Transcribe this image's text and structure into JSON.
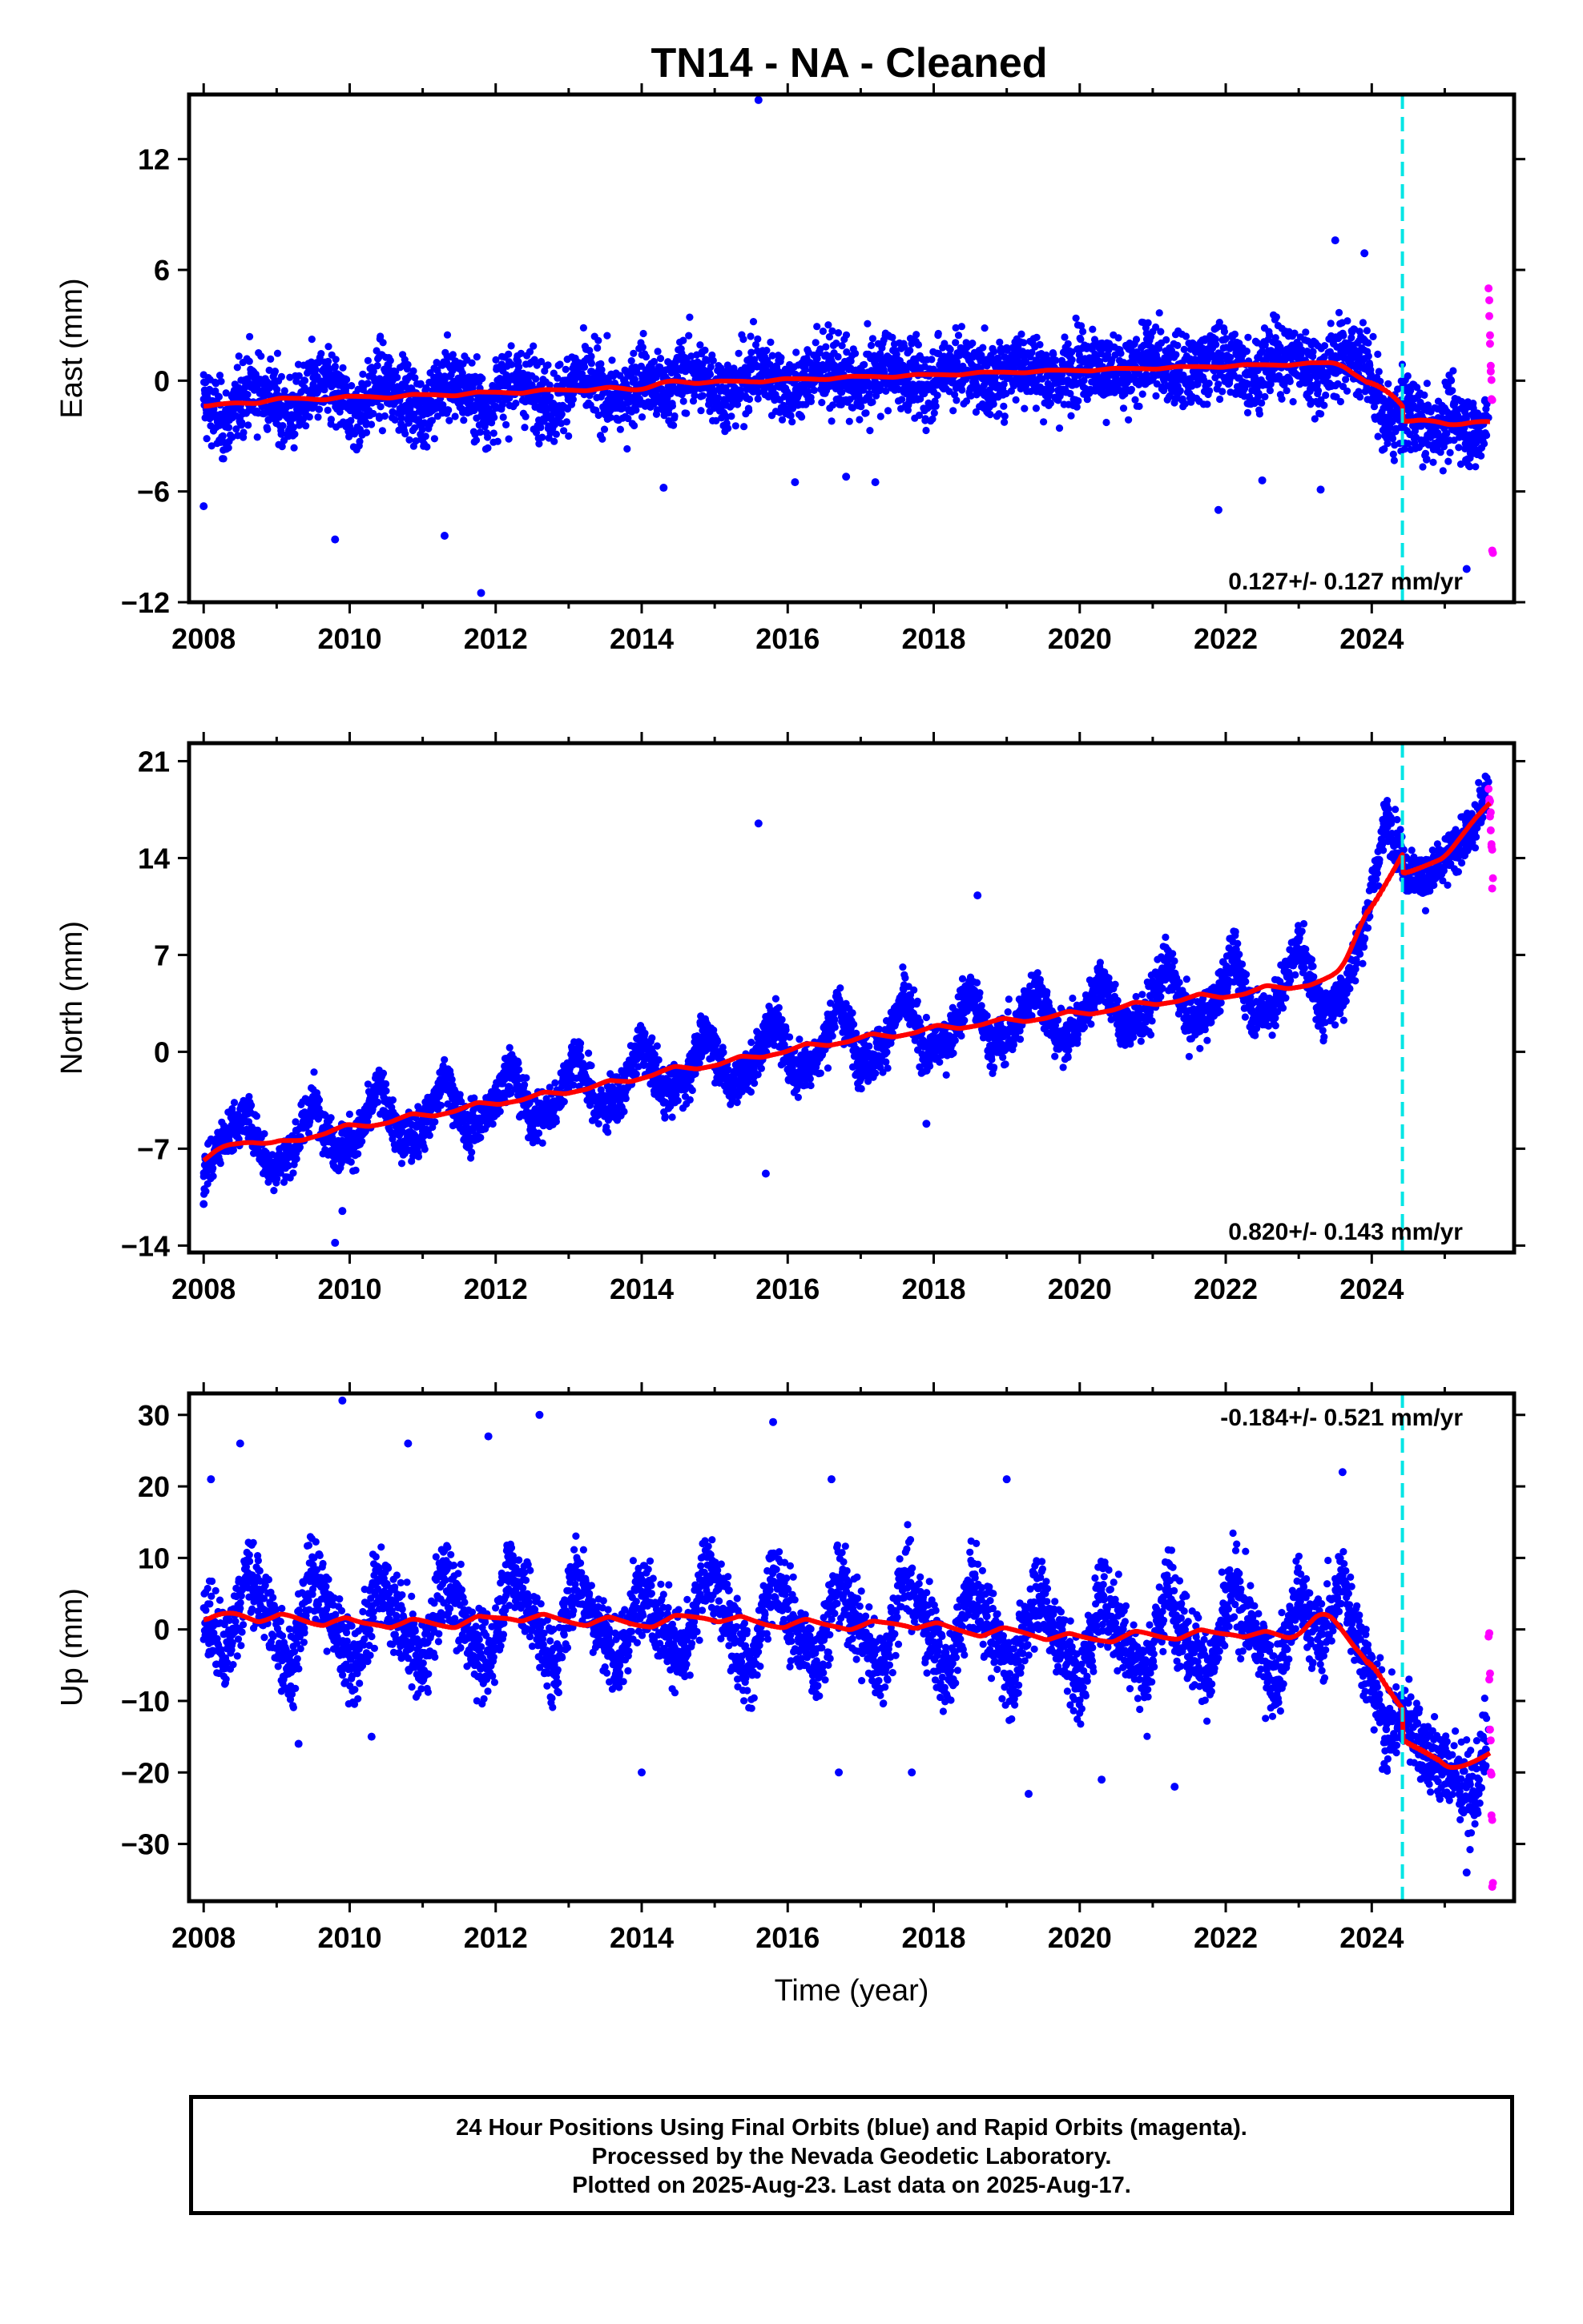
{
  "title": "TN14  - NA - Cleaned",
  "footer": {
    "line1": "24 Hour Positions Using Final Orbits (blue) and Rapid Orbits (magenta).",
    "line2": "Processed by the Nevada Geodetic Laboratory.",
    "line3": "Plotted on 2025-Aug-23. Last data on 2025-Aug-17."
  },
  "colors": {
    "final": "#0000ff",
    "rapid": "#ff00ff",
    "model": "#ff0000",
    "offset_marker": "#00e5e5"
  },
  "chart_data": [
    {
      "type": "scatter",
      "component": "east",
      "ylabel": "East (mm)",
      "xlabel": "",
      "xlim": [
        2007.8,
        2025.95
      ],
      "ylim": [
        -12,
        15.5
      ],
      "xticks": [
        2008,
        2010,
        2012,
        2014,
        2016,
        2018,
        2020,
        2022,
        2024
      ],
      "yticks": [
        -12,
        -6,
        0,
        6,
        12
      ],
      "offset_epoch": 2024.42,
      "rate_text": "0.127+/- 0.127 mm/yr",
      "rate_position": "bottom-right",
      "series": [
        {
          "kind": "final",
          "x": [
            2008.0,
            2008.3,
            2008.6,
            2008.9,
            2009.2,
            2009.5,
            2009.8,
            2010.1,
            2010.4,
            2010.7,
            2011.0,
            2011.3,
            2011.6,
            2011.9,
            2012.2,
            2012.5,
            2012.8,
            2013.1,
            2013.4,
            2013.7,
            2014.0,
            2014.3,
            2014.6,
            2014.9,
            2015.2,
            2015.5,
            2015.8,
            2016.1,
            2016.4,
            2016.7,
            2017.0,
            2017.3,
            2017.6,
            2017.9,
            2018.2,
            2018.5,
            2018.8,
            2019.1,
            2019.4,
            2019.7,
            2020.0,
            2020.3,
            2020.6,
            2020.9,
            2021.2,
            2021.5,
            2021.8,
            2022.1,
            2022.4,
            2022.7,
            2023.0,
            2023.3,
            2023.6,
            2023.9,
            2024.2,
            2024.5,
            2024.8,
            2025.1,
            2025.4,
            2025.6
          ],
          "y": [
            -1.0,
            -2.5,
            -0.3,
            -0.8,
            -2.0,
            -0.2,
            -0.7,
            -1.9,
            -0.1,
            -0.6,
            -1.8,
            0.0,
            -0.5,
            -1.6,
            0.1,
            -0.4,
            -1.4,
            0.2,
            -0.3,
            -1.2,
            0.3,
            -0.8,
            0.5,
            0.1,
            -0.9,
            0.6,
            0.2,
            -0.7,
            0.7,
            0.3,
            -0.5,
            0.8,
            0.4,
            -0.4,
            0.9,
            0.5,
            -0.2,
            1.0,
            0.6,
            -0.1,
            1.1,
            0.7,
            0.0,
            1.2,
            0.8,
            0.1,
            1.3,
            0.9,
            0.2,
            1.4,
            1.0,
            0.3,
            1.5,
            1.2,
            -2.5,
            -1.5,
            -2.8,
            -1.8,
            -3.0,
            -2.0
          ]
        },
        {
          "kind": "outliers",
          "x": [
            2008.0,
            2009.8,
            2011.3,
            2011.8,
            2014.3,
            2015.6,
            2016.1,
            2016.8,
            2017.2,
            2021.9,
            2022.5,
            2023.3,
            2023.5,
            2023.9,
            2025.3
          ],
          "y": [
            -6.8,
            -8.6,
            -8.4,
            -11.5,
            -5.8,
            15.2,
            -5.5,
            -5.2,
            -5.5,
            -7.0,
            -5.4,
            -5.9,
            7.6,
            6.9,
            -10.2
          ]
        },
        {
          "kind": "rapid",
          "x": [
            2025.6,
            2025.61,
            2025.62,
            2025.63,
            2025.64,
            2025.65
          ],
          "y": [
            5.0,
            3.5,
            2.0,
            0.5,
            -1.0,
            -9.2
          ]
        }
      ]
    },
    {
      "type": "scatter",
      "component": "north",
      "ylabel": "North (mm)",
      "xlabel": "",
      "xlim": [
        2007.8,
        2025.95
      ],
      "ylim": [
        -14.5,
        22.3
      ],
      "xticks": [
        2008,
        2010,
        2012,
        2014,
        2016,
        2018,
        2020,
        2022,
        2024
      ],
      "yticks": [
        -14,
        -7,
        0,
        7,
        14,
        21
      ],
      "offset_epoch": 2024.42,
      "rate_text": "0.820+/- 0.143 mm/yr",
      "rate_position": "bottom-right",
      "series": [
        {
          "kind": "final",
          "x": [
            2008.0,
            2008.3,
            2008.6,
            2008.9,
            2009.2,
            2009.5,
            2009.8,
            2010.1,
            2010.4,
            2010.7,
            2011.0,
            2011.3,
            2011.6,
            2011.9,
            2012.2,
            2012.5,
            2012.8,
            2013.1,
            2013.4,
            2013.7,
            2014.0,
            2014.3,
            2014.6,
            2014.9,
            2015.2,
            2015.5,
            2015.8,
            2016.1,
            2016.4,
            2016.7,
            2017.0,
            2017.3,
            2017.6,
            2017.9,
            2018.2,
            2018.5,
            2018.8,
            2019.1,
            2019.4,
            2019.7,
            2020.0,
            2020.3,
            2020.6,
            2020.9,
            2021.2,
            2021.5,
            2021.8,
            2022.1,
            2022.4,
            2022.7,
            2023.0,
            2023.3,
            2023.6,
            2023.9,
            2024.2,
            2024.5,
            2024.8,
            2025.1,
            2025.4,
            2025.6
          ],
          "y": [
            -9.0,
            -6.0,
            -4.5,
            -8.5,
            -7.5,
            -3.5,
            -7.0,
            -6.5,
            -2.5,
            -6.5,
            -5.5,
            -1.8,
            -5.8,
            -4.5,
            -1.0,
            -5.0,
            -4.0,
            0.0,
            -4.2,
            -3.2,
            0.8,
            -3.0,
            -2.0,
            1.5,
            -2.5,
            -1.2,
            2.5,
            -1.5,
            -0.5,
            3.5,
            -0.8,
            0.2,
            4.0,
            -0.2,
            1.0,
            4.5,
            0.3,
            1.5,
            5.0,
            0.8,
            2.0,
            5.5,
            1.5,
            2.5,
            6.5,
            2.0,
            3.0,
            7.0,
            2.5,
            3.5,
            8.0,
            3.0,
            4.0,
            9.0,
            17.0,
            13.0,
            12.5,
            14.5,
            16.0,
            19.5
          ]
        },
        {
          "kind": "outliers",
          "x": [
            2008.0,
            2009.8,
            2009.9,
            2015.6,
            2015.7,
            2017.9,
            2018.6
          ],
          "y": [
            -11.0,
            -13.8,
            -11.5,
            16.5,
            -8.8,
            -5.2,
            11.3
          ]
        },
        {
          "kind": "rapid",
          "x": [
            2025.6,
            2025.61,
            2025.62,
            2025.63,
            2025.64,
            2025.65
          ],
          "y": [
            19.0,
            18.0,
            17.0,
            16.0,
            15.0,
            11.8
          ]
        }
      ]
    },
    {
      "type": "scatter",
      "component": "up",
      "ylabel": "Up (mm)",
      "xlabel": "Time (year)",
      "xlim": [
        2007.8,
        2025.95
      ],
      "ylim": [
        -38,
        33
      ],
      "xticks": [
        2008,
        2010,
        2012,
        2014,
        2016,
        2018,
        2020,
        2022,
        2024
      ],
      "yticks": [
        -30,
        -20,
        -10,
        0,
        10,
        20,
        30
      ],
      "offset_epoch": 2024.42,
      "rate_text": "-0.184+/- 0.521 mm/yr",
      "rate_position": "top-right",
      "series": [
        {
          "kind": "final",
          "x": [
            2008.0,
            2008.3,
            2008.6,
            2008.9,
            2009.2,
            2009.5,
            2009.8,
            2010.1,
            2010.4,
            2010.7,
            2011.0,
            2011.3,
            2011.6,
            2011.9,
            2012.2,
            2012.5,
            2012.8,
            2013.1,
            2013.4,
            2013.7,
            2014.0,
            2014.3,
            2014.6,
            2014.9,
            2015.2,
            2015.5,
            2015.8,
            2016.1,
            2016.4,
            2016.7,
            2017.0,
            2017.3,
            2017.6,
            2017.9,
            2018.2,
            2018.5,
            2018.8,
            2019.1,
            2019.4,
            2019.7,
            2020.0,
            2020.3,
            2020.6,
            2020.9,
            2021.2,
            2021.5,
            2021.8,
            2022.1,
            2022.4,
            2022.7,
            2023.0,
            2023.3,
            2023.6,
            2023.9,
            2024.2,
            2024.5,
            2024.8,
            2025.1,
            2025.4,
            2025.6
          ],
          "y": [
            3,
            -4,
            8,
            2,
            -6,
            9,
            0,
            -5,
            7,
            1,
            -6,
            8,
            0,
            -5,
            9,
            2,
            -6,
            8,
            1,
            -5,
            7,
            0,
            -4,
            9,
            1,
            -6,
            8,
            0,
            -5,
            7,
            0,
            -6,
            8,
            1,
            -7,
            6,
            0,
            -7,
            6,
            -1,
            -8,
            5,
            -1,
            -7,
            6,
            -2,
            -6,
            6,
            -1,
            -7,
            5,
            -2,
            7,
            -4,
            -14,
            -12,
            -18,
            -20,
            -24,
            -14
          ]
        },
        {
          "kind": "outliers",
          "x": [
            2008.1,
            2008.5,
            2009.3,
            2009.9,
            2010.3,
            2010.8,
            2011.9,
            2012.6,
            2014.0,
            2015.8,
            2016.6,
            2016.7,
            2017.7,
            2019.0,
            2019.3,
            2020.3,
            2021.3,
            2023.6,
            2025.3
          ],
          "y": [
            21,
            26,
            -16,
            32,
            -15,
            26,
            27,
            30,
            -20,
            29,
            21,
            -20,
            -20,
            21,
            -23,
            -21,
            -22,
            22,
            -34
          ]
        },
        {
          "kind": "rapid",
          "x": [
            2025.6,
            2025.61,
            2025.62,
            2025.63,
            2025.64,
            2025.65
          ],
          "y": [
            -1,
            -7,
            -14,
            -20,
            -26,
            -36
          ]
        }
      ]
    }
  ]
}
